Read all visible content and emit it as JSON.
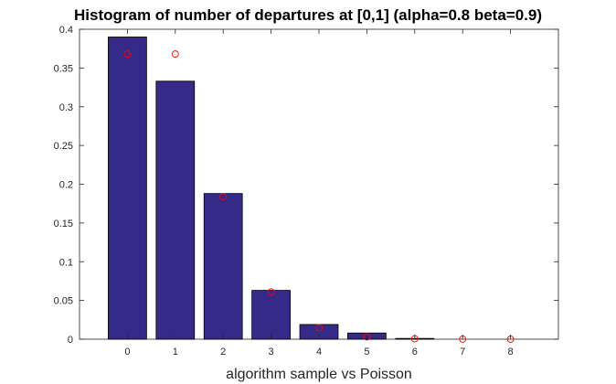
{
  "chart_data": {
    "type": "bar",
    "title": "Histogram of number of departures at [0,1] (alpha=0.8 beta=0.9)",
    "xlabel": "algorithm sample vs Poisson",
    "ylabel": "",
    "xlim": [
      -1,
      9
    ],
    "ylim": [
      0,
      0.4
    ],
    "xticks": [
      "0",
      "1",
      "2",
      "3",
      "4",
      "5",
      "6",
      "7",
      "8"
    ],
    "yticks": [
      "0",
      "0.05",
      "0.1",
      "0.15",
      "0.2",
      "0.25",
      "0.3",
      "0.35",
      "0.4"
    ],
    "grid": false,
    "series": [
      {
        "type": "bar",
        "x": [
          0,
          1,
          2,
          3,
          4,
          5,
          6
        ],
        "values": [
          0.39,
          0.333,
          0.188,
          0.063,
          0.019,
          0.008,
          0.001
        ],
        "color": "#352a87"
      },
      {
        "type": "scatter",
        "marker": "circle",
        "x": [
          0,
          1,
          2,
          3,
          4,
          5,
          6,
          7,
          8
        ],
        "values": [
          0.368,
          0.368,
          0.184,
          0.061,
          0.015,
          0.003,
          0.0005,
          0.0001,
          1e-05
        ],
        "color": "#ff0000"
      }
    ]
  }
}
